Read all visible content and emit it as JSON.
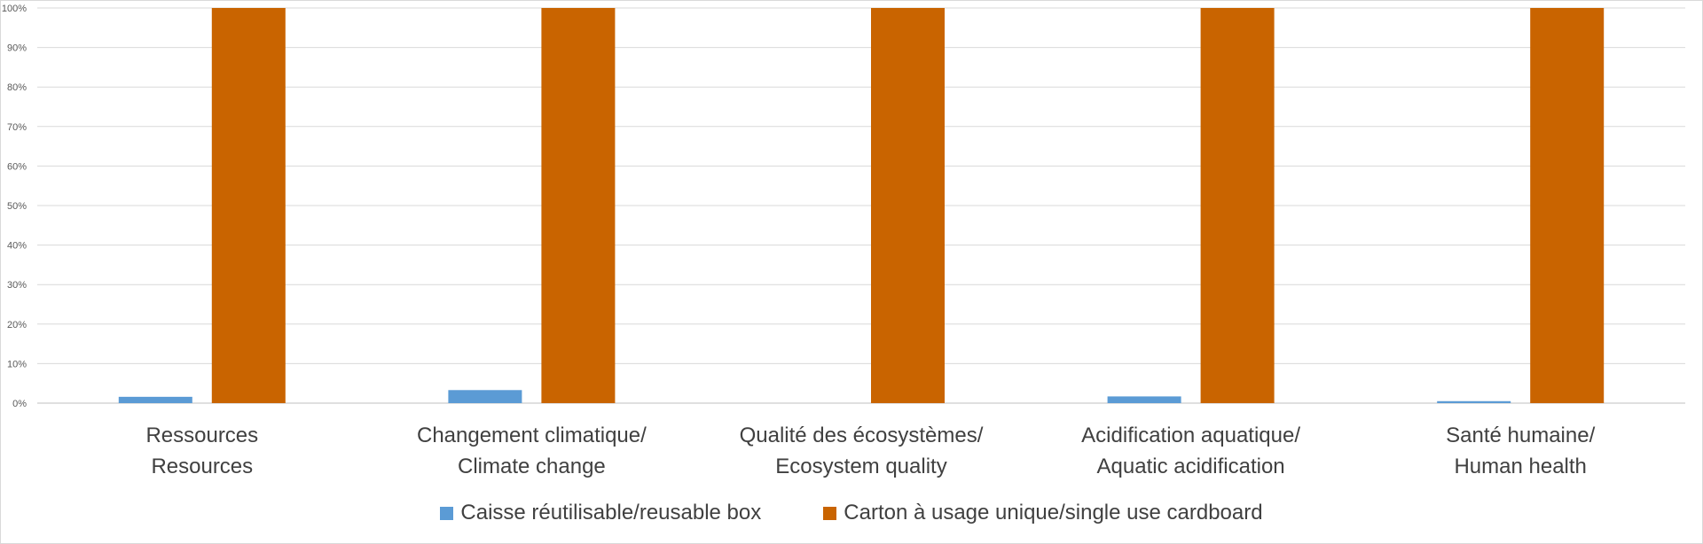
{
  "chart_data": {
    "type": "bar",
    "categories": [
      [
        "Ressources",
        "Resources"
      ],
      [
        "Changement climatique/",
        "Climate change"
      ],
      [
        "Qualité des écosystèmes/",
        "Ecosystem quality"
      ],
      [
        "Acidification aquatique/",
        "Aquatic acidification"
      ],
      [
        "Santé humaine/",
        "Human health"
      ]
    ],
    "series": [
      {
        "name": "Caisse réutilisable/reusable box",
        "color": "#5B9BD5",
        "values": [
          1.6,
          3.3,
          0,
          1.7,
          0.5
        ]
      },
      {
        "name": "Carton à usage unique/single use cardboard",
        "color": "#C96400",
        "values": [
          100,
          100,
          100,
          100,
          100
        ]
      }
    ],
    "y_ticks": [
      "0%",
      "10%",
      "20%",
      "30%",
      "40%",
      "50%",
      "60%",
      "70%",
      "80%",
      "90%",
      "100%"
    ],
    "ylim": [
      0,
      100
    ],
    "grid": true,
    "legend_position": "bottom",
    "title": "",
    "xlabel": "",
    "ylabel": ""
  }
}
